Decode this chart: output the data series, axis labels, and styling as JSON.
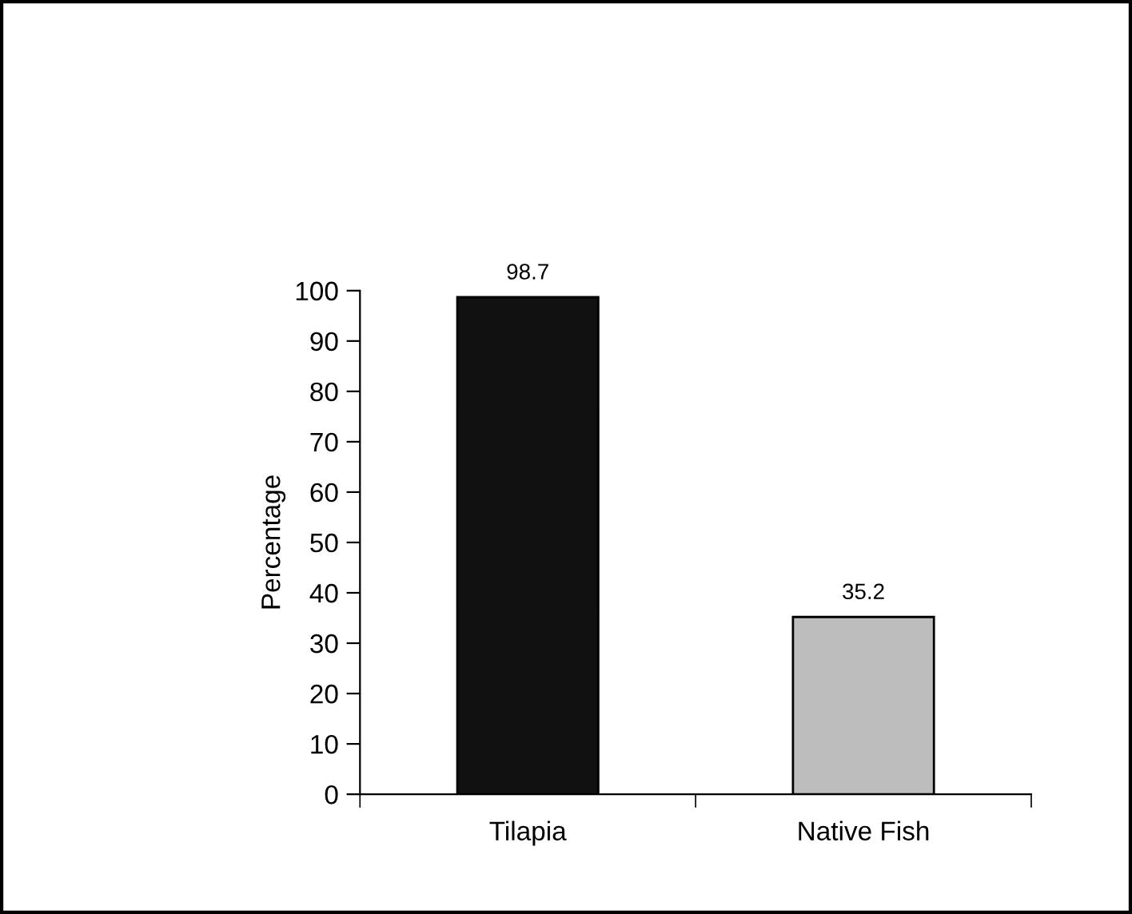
{
  "chart_data": {
    "type": "bar",
    "ylabel": "Percentage",
    "categories": [
      "Tilapia",
      "Native Fish"
    ],
    "values": [
      98.7,
      35.2
    ],
    "colors": [
      "#111111",
      "#bdbdbd"
    ],
    "ylim": [
      0,
      100
    ],
    "yticks": [
      0,
      10,
      20,
      30,
      40,
      50,
      60,
      70,
      80,
      90,
      100
    ],
    "data_labels": true,
    "grid": false,
    "legend": false
  }
}
